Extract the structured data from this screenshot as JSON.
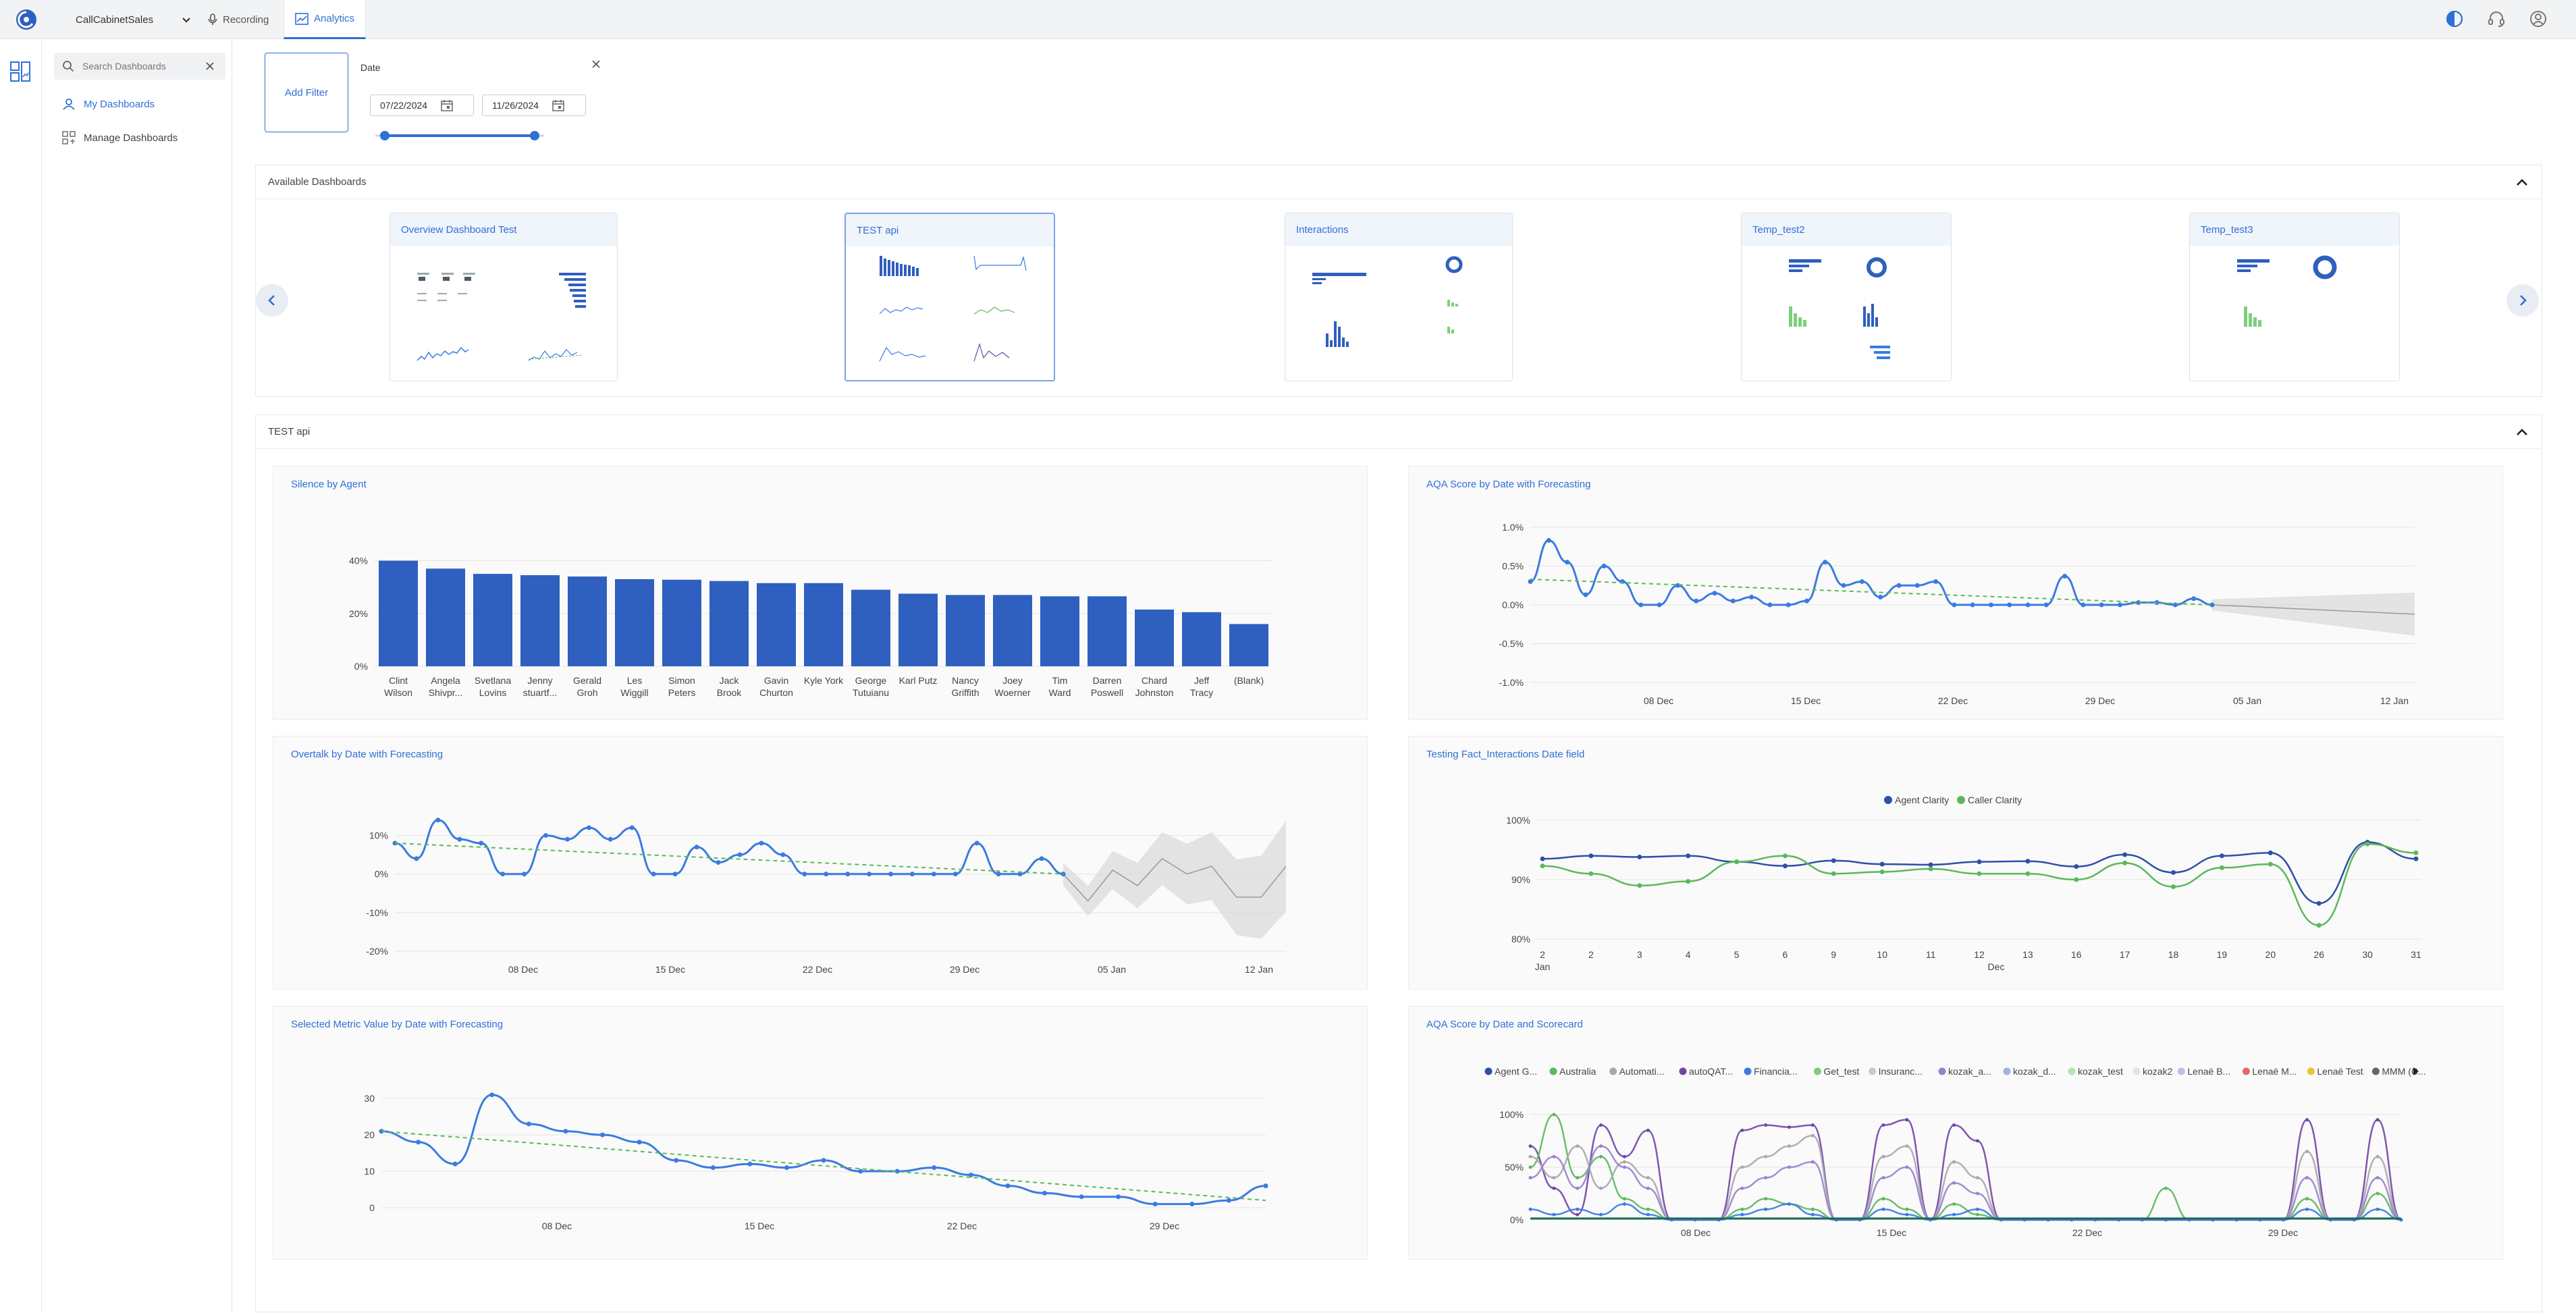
{
  "topbar": {
    "org_name": "CallCabinetSales",
    "tabs": [
      {
        "label": "Recording",
        "icon": "microphone-icon"
      },
      {
        "label": "Analytics",
        "icon": "chart-line-icon"
      }
    ],
    "right_icons": [
      "contrast-icon",
      "headset-icon",
      "user-icon"
    ]
  },
  "sidebar": {
    "search_placeholder": "Search Dashboards",
    "items": [
      {
        "label": "My Dashboards",
        "active": true
      },
      {
        "label": "Manage Dashboards",
        "active": false
      }
    ]
  },
  "filters": {
    "add_filter_label": "Add Filter",
    "date_label": "Date",
    "date_from": "07/22/2024",
    "date_to": "11/26/2024"
  },
  "available": {
    "title": "Available Dashboards",
    "dashboards": [
      "Overview Dashboard Test",
      "TEST api",
      "Interactions",
      "Temp_test2",
      "Temp_test3"
    ],
    "selected": "TEST api"
  },
  "dashboard": {
    "title": "TEST api"
  },
  "colors": {
    "accent": "#2f6fd6",
    "bar": "#2f5fbf",
    "line": "#3a7be0",
    "trend": "#5cb85c",
    "forecast": "#d9d9d9"
  },
  "charts": {
    "silence": {
      "title": "Silence by Agent",
      "chart_data": {
        "type": "bar",
        "categories": [
          [
            "Clint",
            "Wilson"
          ],
          [
            "Angela",
            "Shivpr..."
          ],
          [
            "Svetlana",
            "Lovins"
          ],
          [
            "Jenny",
            "stuartf..."
          ],
          [
            "Gerald",
            "Groh"
          ],
          [
            "Les",
            "Wiggill"
          ],
          [
            "Simon",
            "Peters"
          ],
          [
            "Jack",
            "Brook"
          ],
          [
            "Gavin",
            "Churton"
          ],
          [
            "Kyle York",
            ""
          ],
          [
            "George",
            "Tutuianu"
          ],
          [
            "Karl Putz",
            ""
          ],
          [
            "Nancy",
            "Griffith"
          ],
          [
            "Joey",
            "Woerner"
          ],
          [
            "Tim",
            "Ward"
          ],
          [
            "Darren",
            "Poswell"
          ],
          [
            "Chard",
            "Johnston"
          ],
          [
            "Jeff",
            "Tracy"
          ],
          [
            "(Blank)",
            ""
          ]
        ],
        "values": [
          40,
          37,
          35,
          34.5,
          34,
          33,
          32.8,
          32.3,
          31.5,
          31.5,
          29,
          27.5,
          27,
          27,
          26.5,
          26.5,
          21.5,
          20.5,
          16
        ],
        "yticks": [
          "0%",
          "20%",
          "40%"
        ],
        "ylim": [
          0,
          45
        ]
      }
    },
    "aqa_forecast": {
      "title": "AQA Score by Date with Forecasting",
      "chart_data": {
        "type": "line",
        "yticks": [
          "1.0%",
          "0.5%",
          "0.0%",
          "-0.5%",
          "-1.0%"
        ],
        "ylim": [
          -1.0,
          1.0
        ],
        "xticks": [
          "08 Dec",
          "15 Dec",
          "22 Dec",
          "29 Dec",
          "05 Jan",
          "12 Jan"
        ],
        "values": [
          0.3,
          0.83,
          0.55,
          0.13,
          0.5,
          0.3,
          0.0,
          0.0,
          0.25,
          0.05,
          0.15,
          0.05,
          0.1,
          0.0,
          0.0,
          0.05,
          0.55,
          0.25,
          0.3,
          0.1,
          0.25,
          0.25,
          0.3,
          0.0,
          0.0,
          0.0,
          0.0,
          0.0,
          0.0,
          0.37,
          0.0,
          0.0,
          0.0,
          0.03,
          0.03,
          0.0,
          0.08,
          0.0
        ],
        "forecast": [
          0.0,
          -0.02,
          -0.04,
          -0.06,
          -0.08,
          -0.1,
          -0.12
        ],
        "trend": [
          0.33,
          0.0
        ]
      }
    },
    "overtalk": {
      "title": "Overtalk by Date with Forecasting",
      "chart_data": {
        "type": "line",
        "yticks": [
          "10%",
          "0%",
          "-10%",
          "-20%"
        ],
        "ylim": [
          -20,
          15
        ],
        "xticks": [
          "08 Dec",
          "15 Dec",
          "22 Dec",
          "29 Dec",
          "05 Jan",
          "12 Jan"
        ],
        "values": [
          8,
          4,
          14,
          9,
          8,
          0,
          0,
          10,
          9,
          12,
          9,
          12,
          0,
          0,
          7,
          3,
          5,
          8,
          5,
          0,
          0,
          0,
          0,
          0,
          0,
          0,
          0,
          8,
          0,
          0,
          4,
          0
        ],
        "forecast": [
          0,
          -7,
          1,
          -3,
          4,
          0,
          2,
          -6,
          -6,
          2
        ],
        "trend": [
          8,
          0
        ]
      }
    },
    "clarity": {
      "title": "Testing Fact_Interactions Date field",
      "chart_data": {
        "type": "line",
        "yticks": [
          "100%",
          "90%",
          "80%"
        ],
        "ylim": [
          80,
          100
        ],
        "xticks": [
          "2",
          "2",
          "3",
          "4",
          "5",
          "6",
          "9",
          "10",
          "11",
          "12",
          "13",
          "16",
          "17",
          "18",
          "19",
          "20",
          "26",
          "30",
          "31"
        ],
        "xsub": [
          "Jan",
          "Dec"
        ],
        "series": [
          {
            "name": "Agent Clarity",
            "color": "#2f4fa8",
            "values": [
              93.5,
              94,
              93.8,
              94,
              93,
              92.3,
              93.2,
              92.6,
              92.5,
              93,
              93.1,
              92.2,
              94.2,
              91.2,
              94,
              94.5,
              86,
              96.3,
              93.5
            ]
          },
          {
            "name": "Caller Clarity",
            "color": "#5cb85c",
            "values": [
              92.3,
              91,
              89,
              89.7,
              93,
              94,
              91,
              91.3,
              91.8,
              91,
              91,
              90,
              92.8,
              88.8,
              92,
              92.6,
              82.3,
              96,
              94.5
            ]
          }
        ]
      }
    },
    "metric": {
      "title": "Selected Metric Value by Date with Forecasting",
      "chart_data": {
        "type": "line",
        "yticks": [
          "30",
          "20",
          "10",
          "0"
        ],
        "ylim": [
          0,
          33
        ],
        "xticks": [
          "08 Dec",
          "15 Dec",
          "22 Dec",
          "29 Dec"
        ],
        "values": [
          21,
          18,
          12,
          31,
          23,
          21,
          20,
          18,
          13,
          11,
          12,
          11,
          13,
          10,
          10,
          11,
          9,
          6,
          4,
          3,
          3,
          1,
          1,
          2,
          6
        ],
        "trend": [
          21,
          2
        ]
      }
    },
    "aqa_scorecard": {
      "title": "AQA Score by Date and Scorecard",
      "chart_data": {
        "type": "line",
        "yticks": [
          "100%",
          "50%",
          "0%"
        ],
        "ylim": [
          0,
          100
        ],
        "xticks": [
          "08 Dec",
          "15 Dec",
          "22 Dec",
          "29 Dec"
        ],
        "legend": [
          {
            "name": "Agent G...",
            "color": "#2f4fa8"
          },
          {
            "name": "Australia",
            "color": "#5cb85c"
          },
          {
            "name": "Automati...",
            "color": "#a8a8a8"
          },
          {
            "name": "autoQAT...",
            "color": "#6f45a8"
          },
          {
            "name": "Financia...",
            "color": "#3a7be0"
          },
          {
            "name": "Get_test",
            "color": "#7ccf7c"
          },
          {
            "name": "Insuranc...",
            "color": "#c9c9c9"
          },
          {
            "name": "kozak_a...",
            "color": "#9b7fd0"
          },
          {
            "name": "kozak_d...",
            "color": "#9fb2e0"
          },
          {
            "name": "kozak_test",
            "color": "#b7e0b7"
          },
          {
            "name": "kozak2",
            "color": "#e3e3e3"
          },
          {
            "name": "Lenaë B...",
            "color": "#c9b8e8"
          },
          {
            "name": "Lenaë M...",
            "color": "#e46a6a"
          },
          {
            "name": "Lenaë Test",
            "color": "#f0c330"
          },
          {
            "name": "MMM (C...",
            "color": "#666666"
          }
        ],
        "series": [
          {
            "name": "autoQAT...",
            "values": [
              70,
              30,
              5,
              90,
              60,
              85,
              0,
              0,
              0,
              85,
              90,
              88,
              90,
              0,
              0,
              90,
              95,
              0,
              90,
              75,
              0,
              0,
              0,
              0,
              0,
              0,
              0,
              0,
              0,
              0,
              0,
              0,
              0,
              95,
              0,
              0,
              95,
              0
            ]
          },
          {
            "name": "Australia",
            "values": [
              50,
              100,
              40,
              60,
              20,
              10,
              0,
              0,
              0,
              10,
              20,
              15,
              10,
              0,
              0,
              20,
              10,
              0,
              15,
              5,
              0,
              0,
              0,
              0,
              0,
              0,
              0,
              30,
              0,
              0,
              0,
              0,
              0,
              20,
              0,
              0,
              25,
              0
            ]
          },
          {
            "name": "Automati...",
            "values": [
              60,
              40,
              70,
              30,
              55,
              40,
              0,
              0,
              0,
              50,
              60,
              70,
              80,
              0,
              0,
              60,
              70,
              0,
              55,
              40,
              0,
              0,
              0,
              0,
              0,
              0,
              0,
              0,
              0,
              0,
              0,
              0,
              0,
              65,
              0,
              0,
              60,
              0
            ]
          },
          {
            "name": "kozak_a...",
            "values": [
              40,
              60,
              30,
              70,
              50,
              30,
              0,
              0,
              0,
              30,
              40,
              50,
              55,
              0,
              0,
              40,
              50,
              0,
              35,
              25,
              0,
              0,
              0,
              0,
              0,
              0,
              0,
              0,
              0,
              0,
              0,
              0,
              0,
              40,
              0,
              0,
              40,
              0
            ]
          },
          {
            "name": "Financia...",
            "values": [
              10,
              5,
              10,
              5,
              15,
              5,
              0,
              0,
              0,
              5,
              10,
              15,
              5,
              0,
              0,
              10,
              5,
              0,
              5,
              10,
              0,
              0,
              0,
              0,
              0,
              0,
              0,
              0,
              0,
              0,
              0,
              0,
              0,
              10,
              0,
              0,
              10,
              0
            ]
          }
        ]
      }
    }
  }
}
